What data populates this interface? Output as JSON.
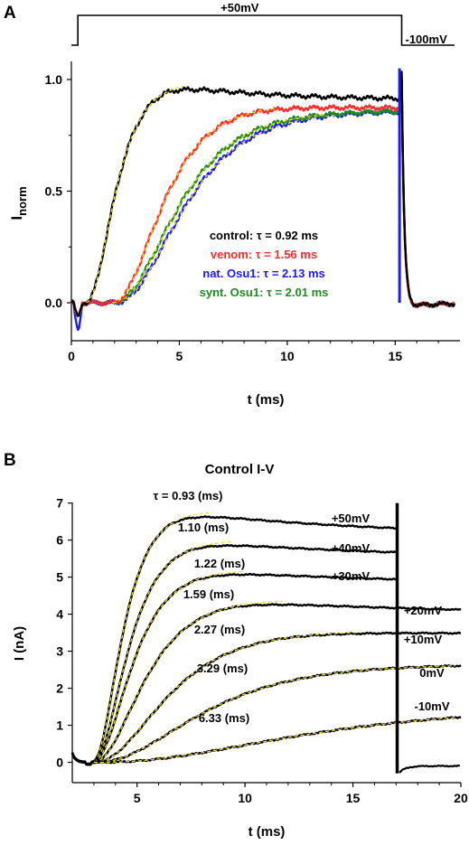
{
  "chart_data": [
    {
      "panel": "A",
      "type": "line",
      "title": "",
      "xlabel": "t (ms)",
      "ylabel": "I",
      "ylabel_sub": "norm",
      "xlim": [
        0,
        18
      ],
      "ylim": [
        -0.15,
        1.05
      ],
      "xticks": [
        "0",
        "5",
        "10",
        "15"
      ],
      "yticks": [
        "0.0",
        "0.5",
        "1.0"
      ],
      "protocol": {
        "step_label": "+50mV",
        "hold_label": "-100mV",
        "step_on": 0.3,
        "step_off": 15.3
      },
      "series": [
        {
          "name": "control: τ = 0.92 ms",
          "color": "#000000",
          "tau": 0.92,
          "delay": 0.6,
          "peak": 0.99,
          "steady": 0.91
        },
        {
          "name": "venom: τ = 1.56 ms",
          "color": "#ff2a2a",
          "tau": 1.56,
          "delay": 1.8,
          "peak": 0.89,
          "steady": 0.87
        },
        {
          "name": "nat. Osu1: τ = 2.13 ms",
          "color": "#1a1aff",
          "tau": 2.13,
          "delay": 1.9,
          "peak": 0.86,
          "steady": 0.86
        },
        {
          "name": "synt. Osu1: τ = 2.01 ms",
          "color": "#1e8c1e",
          "tau": 2.01,
          "delay": 1.8,
          "peak": 0.86,
          "steady": 0.86
        }
      ]
    },
    {
      "panel": "B",
      "type": "line",
      "title": "Control I-V",
      "xlabel": "t (ms)",
      "ylabel": "I (nA)",
      "xlim": [
        2,
        20
      ],
      "ylim": [
        -0.3,
        7
      ],
      "xticks": [
        "5",
        "10",
        "15",
        "20"
      ],
      "yticks": [
        "0",
        "1",
        "2",
        "3",
        "4",
        "5",
        "6",
        "7"
      ],
      "series": [
        {
          "name": "+50mV",
          "tau_label": "τ = 0.93 (ms)",
          "tau": 0.93,
          "peak": 6.8,
          "steady": 6.1,
          "after_step": false
        },
        {
          "name": "+40mV",
          "tau_label": "1.10 (ms)",
          "tau": 1.1,
          "peak": 6.0,
          "steady": 5.5,
          "after_step": false
        },
        {
          "name": "+30mV",
          "tau_label": "1.22 (ms)",
          "tau": 1.22,
          "peak": 5.2,
          "steady": 4.8,
          "after_step": false
        },
        {
          "name": "+20mV",
          "tau_label": "1.59 (ms)",
          "tau": 1.59,
          "peak": 4.4,
          "steady": 4.0,
          "after_step": true
        },
        {
          "name": "+10mV",
          "tau_label": "2.27 (ms)",
          "tau": 2.27,
          "peak": 3.55,
          "steady": 3.45,
          "after_step": true
        },
        {
          "name": "0mV",
          "tau_label": "3.29 (ms)",
          "tau": 3.29,
          "peak": 2.65,
          "steady": 2.65,
          "after_step": true
        },
        {
          "name": "-10mV",
          "tau_label": "6.33 (ms)",
          "tau": 6.33,
          "peak": 1.5,
          "steady": 1.5,
          "after_step": true
        }
      ]
    }
  ],
  "panel_labels": {
    "a": "A",
    "b": "B"
  }
}
